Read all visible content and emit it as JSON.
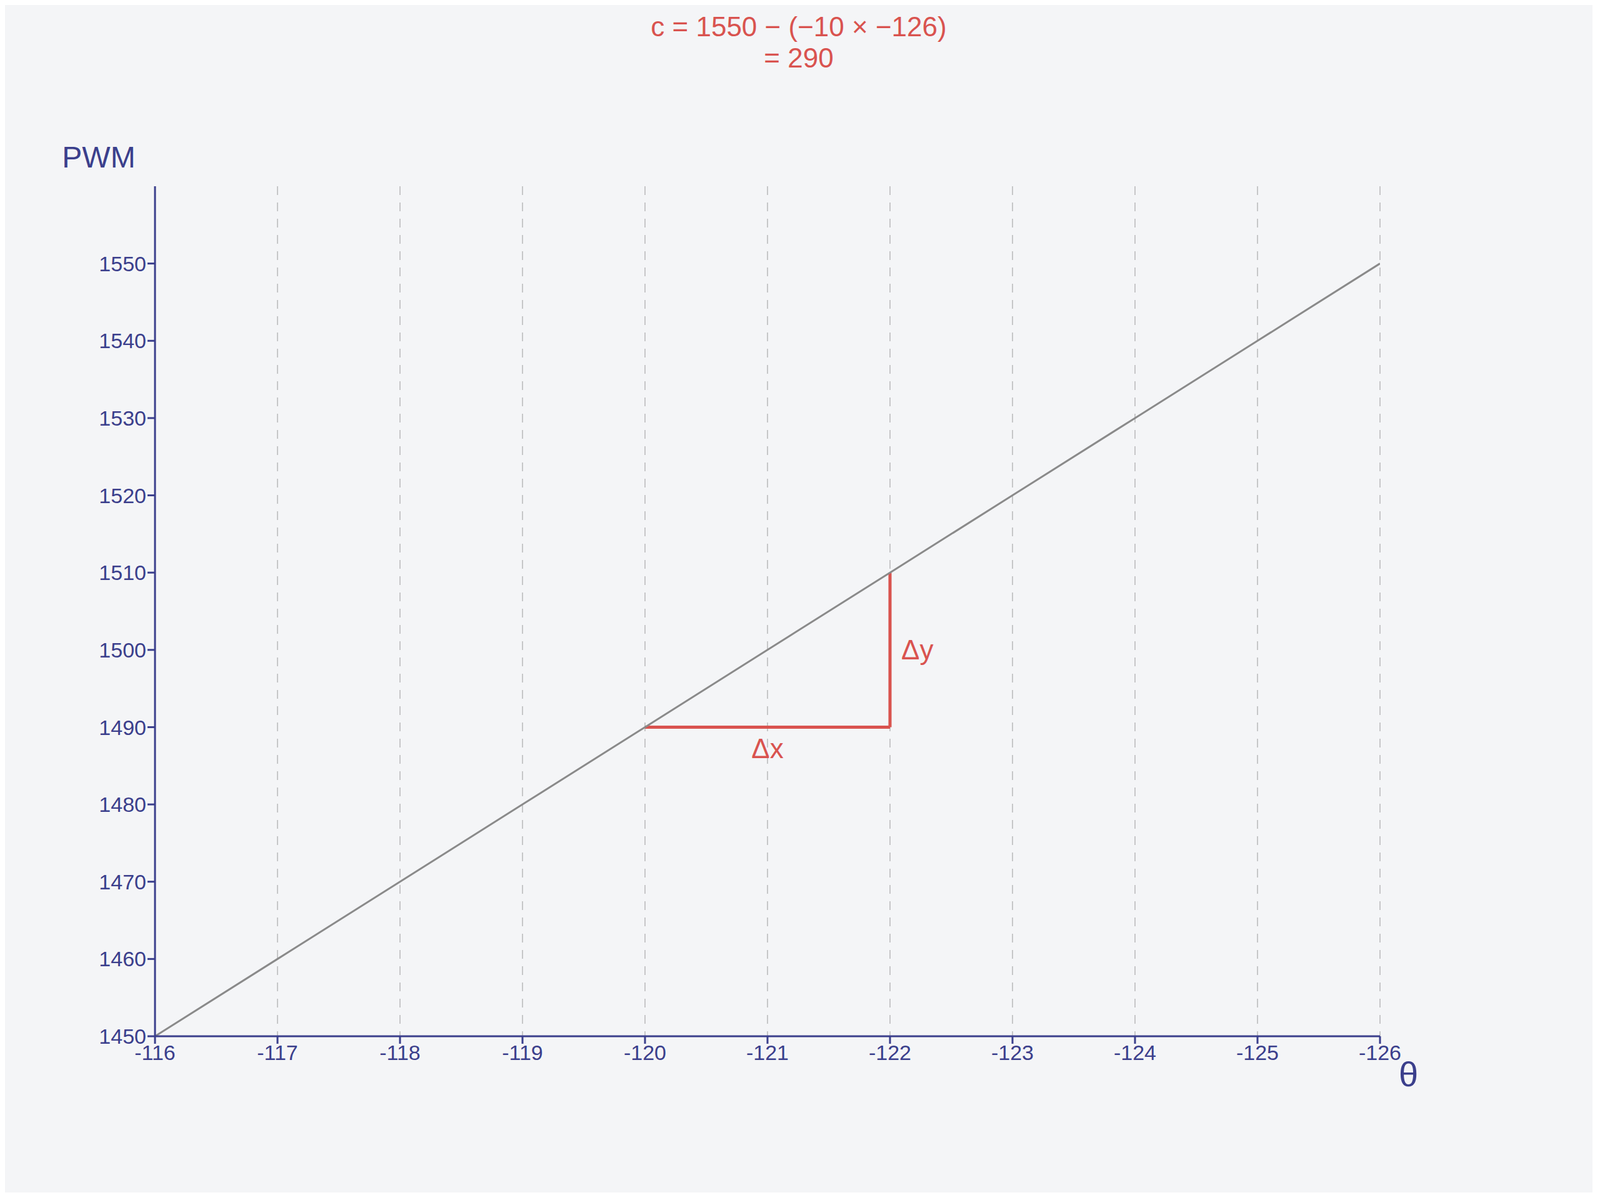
{
  "chart_data": {
    "type": "line",
    "x_label": "θ",
    "y_label": "PWM",
    "x": [
      -116,
      -117,
      -118,
      -119,
      -120,
      -121,
      -122,
      -123,
      -124,
      -125,
      -126
    ],
    "values": [
      1450,
      1460,
      1470,
      1480,
      1490,
      1500,
      1510,
      1520,
      1530,
      1540,
      1550
    ],
    "color": "#8a8a8a",
    "xlim": [
      -116,
      -126
    ],
    "xticks": [
      -116,
      -117,
      -118,
      -119,
      -120,
      -121,
      -122,
      -123,
      -124,
      -125,
      -126
    ],
    "ylim": [
      1450,
      1560
    ],
    "yticks": [
      1450,
      1460,
      1470,
      1480,
      1490,
      1500,
      1510,
      1520,
      1530,
      1540,
      1550
    ],
    "grid": true,
    "annotations": [
      "c = 1550 − (−10 × −126)",
      "= 290"
    ],
    "slope_triangle": {
      "x": [
        -120,
        -122
      ],
      "y": [
        1490,
        1510
      ],
      "labels": [
        "Δx",
        "Δy"
      ],
      "color": "#d9534f"
    }
  }
}
